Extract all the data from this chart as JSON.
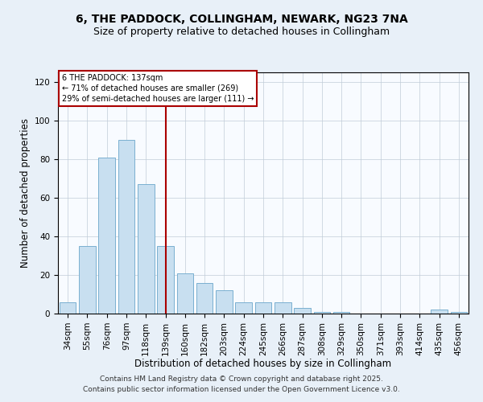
{
  "title1": "6, THE PADDOCK, COLLINGHAM, NEWARK, NG23 7NA",
  "title2": "Size of property relative to detached houses in Collingham",
  "xlabel": "Distribution of detached houses by size in Collingham",
  "ylabel": "Number of detached properties",
  "bar_labels": [
    "34sqm",
    "55sqm",
    "76sqm",
    "97sqm",
    "118sqm",
    "139sqm",
    "160sqm",
    "182sqm",
    "203sqm",
    "224sqm",
    "245sqm",
    "266sqm",
    "287sqm",
    "308sqm",
    "329sqm",
    "350sqm",
    "371sqm",
    "393sqm",
    "414sqm",
    "435sqm",
    "456sqm"
  ],
  "bar_values": [
    6,
    35,
    81,
    90,
    67,
    35,
    21,
    16,
    12,
    6,
    6,
    6,
    3,
    1,
    1,
    0,
    0,
    0,
    0,
    2,
    1
  ],
  "bar_color": "#c8dff0",
  "bar_edge_color": "#7ab0d0",
  "vline_x": 5,
  "vline_color": "#aa0000",
  "annotation_title": "6 THE PADDOCK: 137sqm",
  "annotation_line1": "← 71% of detached houses are smaller (269)",
  "annotation_line2": "29% of semi-detached houses are larger (111) →",
  "annotation_box_color": "#ffffff",
  "annotation_box_edge": "#aa0000",
  "ylim": [
    0,
    125
  ],
  "yticks": [
    0,
    20,
    40,
    60,
    80,
    100,
    120
  ],
  "footer1": "Contains HM Land Registry data © Crown copyright and database right 2025.",
  "footer2": "Contains public sector information licensed under the Open Government Licence v3.0.",
  "bg_color": "#e8f0f8",
  "plot_bg_color": "#f8fbff",
  "title_fontsize": 10,
  "subtitle_fontsize": 9,
  "axis_label_fontsize": 8.5,
  "tick_fontsize": 7.5,
  "footer_fontsize": 6.5
}
